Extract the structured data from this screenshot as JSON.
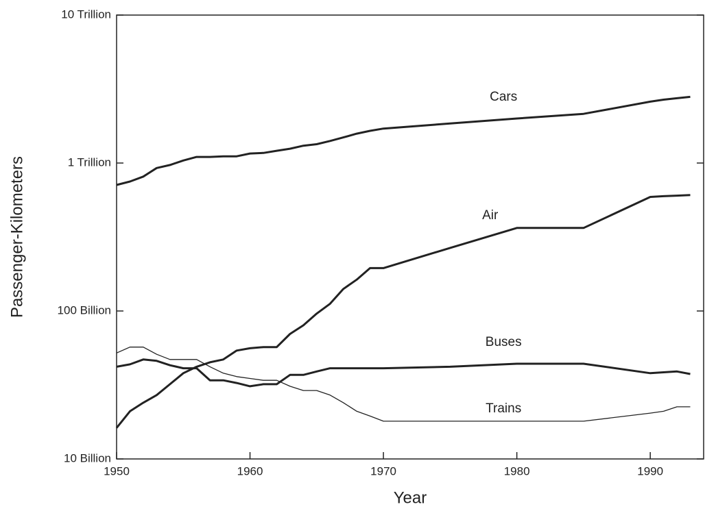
{
  "chart_data": {
    "type": "line",
    "xlabel": "Year",
    "ylabel": "Passenger-Kilometers",
    "x": [
      1950,
      1951,
      1952,
      1953,
      1954,
      1955,
      1956,
      1957,
      1958,
      1959,
      1960,
      1961,
      1962,
      1963,
      1964,
      1965,
      1966,
      1967,
      1968,
      1969,
      1970,
      1975,
      1980,
      1985,
      1990,
      1991,
      1992,
      1993
    ],
    "series": [
      {
        "name": "Cars",
        "color": "#222222",
        "values": [
          711,
          750,
          810,
          925,
          970,
          1040,
          1100,
          1100,
          1110,
          1110,
          1160,
          1170,
          1210,
          1250,
          1310,
          1340,
          1410,
          1490,
          1580,
          1650,
          1710,
          1850,
          2000,
          2150,
          2600,
          2680,
          2740,
          2800
        ]
      },
      {
        "name": "Air",
        "color": "#222222",
        "values": [
          16.2,
          21,
          24,
          27,
          32,
          38,
          42,
          45,
          47,
          54,
          56,
          57,
          57,
          70,
          80,
          96,
          112,
          141,
          163,
          195,
          195,
          267,
          364,
          364,
          590,
          597,
          602,
          607
        ]
      },
      {
        "name": "Buses",
        "color": "#222222",
        "values": [
          42,
          43.6,
          47,
          46,
          43,
          41,
          41,
          34,
          34,
          32.6,
          31,
          32,
          32,
          37,
          37,
          39,
          41,
          41,
          41,
          41,
          41,
          42,
          44,
          44,
          38,
          38.5,
          39,
          37.5
        ]
      },
      {
        "name": "Trains",
        "color": "#222222",
        "values": [
          52,
          57,
          57,
          51,
          47,
          47,
          47,
          42,
          38,
          36,
          35,
          34,
          34,
          31,
          29,
          29,
          27,
          24,
          21,
          19.5,
          18,
          18,
          18,
          18,
          20.4,
          21,
          22.5,
          22.5
        ]
      }
    ],
    "xlim": [
      1950,
      1994
    ],
    "xticks": [
      1950,
      1960,
      1970,
      1980,
      1990
    ],
    "ylim": [
      10,
      10000
    ],
    "log_y": true,
    "yticks": [
      {
        "value": 10,
        "label": "10 Billion"
      },
      {
        "value": 100,
        "label": "100 Billion"
      },
      {
        "value": 1000,
        "label": "1 Trillion"
      },
      {
        "value": 10000,
        "label": "10 Trillion"
      }
    ]
  }
}
